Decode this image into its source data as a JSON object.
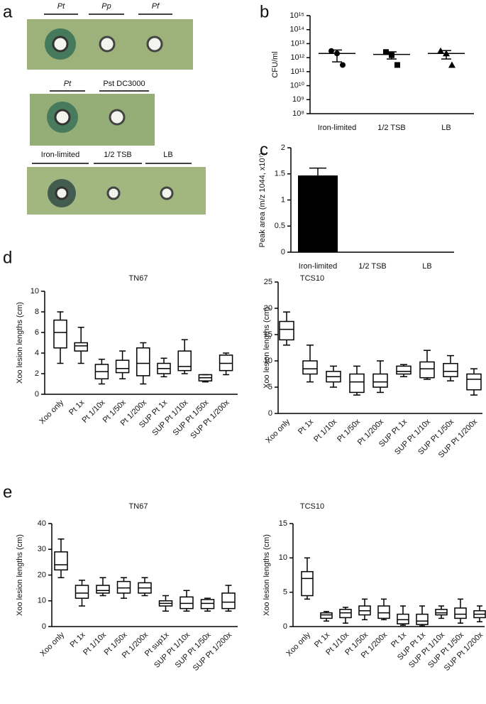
{
  "panel_labels": [
    "a",
    "b",
    "c",
    "d",
    "e"
  ],
  "panel_a": {
    "rows": [
      [
        "Pt",
        "Pp",
        "Pf"
      ],
      [
        "Pt",
        "Pst DC3000"
      ],
      [
        "Iron-limited",
        "1/2 TSB",
        "LB"
      ]
    ]
  },
  "chart_data": [
    {
      "type": "scatter",
      "y_label": "CFU/ml",
      "log_y": true,
      "categories": [
        "Iron-limited",
        "1/2 TSB",
        "LB"
      ],
      "markers": [
        "circle",
        "square",
        "triangle"
      ],
      "values": [
        [
          3000000000000.0,
          2000000000000.0,
          300000000000.0
        ],
        [
          2500000000000.0,
          1500000000000.0,
          300000000000.0
        ],
        [
          3000000000000.0,
          2000000000000.0,
          300000000000.0
        ]
      ],
      "means": [
        2000000000000.0,
        1700000000000.0,
        2000000000000.0
      ],
      "errors": [
        1500000000000.0,
        900000000000.0,
        1200000000000.0
      ],
      "ylim": [
        100000000.0,
        1000000000000000.0
      ],
      "yticks": [
        {
          "value": 100000000.0,
          "label": "10⁸"
        },
        {
          "value": 1000000000.0,
          "label": "10⁹"
        },
        {
          "value": 10000000000.0,
          "label": "10¹⁰"
        },
        {
          "value": 100000000000.0,
          "label": "10¹¹"
        },
        {
          "value": 1000000000000.0,
          "label": "10¹²"
        },
        {
          "value": 10000000000000.0,
          "label": "10¹³"
        },
        {
          "value": 100000000000000.0,
          "label": "10¹⁴"
        },
        {
          "value": 1000000000000000.0,
          "label": "10¹⁵"
        }
      ]
    },
    {
      "type": "bar",
      "y_label": "Peak area (m/z 1044, x10⁷)",
      "color": "#000000",
      "categories": [
        "Iron-limited",
        "1/2 TSB",
        "LB"
      ],
      "values": [
        1.47,
        0,
        0
      ],
      "errors": [
        0.14,
        null,
        null
      ],
      "ylim": [
        0,
        2
      ],
      "yticks": [
        0,
        0.5,
        1,
        1.5,
        2
      ]
    },
    {
      "type": "box",
      "title": "TN67",
      "y_label": "Xoo lesion lengths (cm)",
      "categories": [
        "Xoo only",
        "Pt 1x",
        "Pt 1/10x",
        "Pt 1/50x",
        "Pt 1/200x",
        "SUP Pt 1x",
        "SUP Pt 1/10x",
        "SUP Pt 1/50x",
        "SUP Pt 1/200x"
      ],
      "values": [
        [
          3,
          4.5,
          6,
          7.2,
          8
        ],
        [
          3,
          4.2,
          4.7,
          5,
          6.5
        ],
        [
          1,
          1.5,
          2.2,
          2.9,
          3.4
        ],
        [
          1.5,
          2.1,
          2.5,
          3.3,
          4.2
        ],
        [
          1,
          1.8,
          3,
          4.5,
          5
        ],
        [
          1.7,
          2,
          2.5,
          3,
          3.5
        ],
        [
          2,
          2.3,
          2.7,
          4.2,
          5.3
        ],
        [
          1.2,
          1.3,
          1.6,
          1.9,
          1.9
        ],
        [
          1.9,
          2.3,
          3,
          3.8,
          4
        ]
      ],
      "ylim": [
        0,
        10
      ],
      "yticks": [
        0,
        2,
        4,
        6,
        8,
        10
      ]
    },
    {
      "type": "box",
      "title": "TCS10",
      "y_label": "Xoo lesion lengths (cm)",
      "categories": [
        "Xoo only",
        "Pt 1x",
        "Pt 1/10x",
        "Pt 1/50x",
        "Pt 1/200x",
        "SUP Pt 1x",
        "SUP Pt 1/10x",
        "SUP Pt 1/50x",
        "SUP Pt 1/200x"
      ],
      "values": [
        [
          13,
          14,
          16,
          17.5,
          19.3
        ],
        [
          6,
          7.5,
          8.5,
          10,
          13
        ],
        [
          5,
          6,
          7,
          8,
          9
        ],
        [
          3.5,
          4,
          6,
          7.5,
          9
        ],
        [
          4,
          5,
          6,
          7.5,
          10
        ],
        [
          7,
          7.5,
          8,
          9,
          9.3
        ],
        [
          6.5,
          6.8,
          8.5,
          9.8,
          12
        ],
        [
          6.2,
          7,
          8,
          9.5,
          11
        ],
        [
          3.5,
          4.5,
          6.5,
          7.5,
          8.5
        ]
      ],
      "ylim": [
        0,
        25
      ],
      "yticks": [
        0,
        5,
        10,
        15,
        20,
        25
      ]
    },
    {
      "type": "box",
      "title": "TN67",
      "y_label": "Xoo lesion lengths (cm)",
      "categories": [
        "Xoo only",
        "Pt 1x",
        "Pt 1/10x",
        "Pt 1/50x",
        "Pt 1/200x",
        "Pt sup1x",
        "SUP Pt 1/10x",
        "SUP Pt 1/50x",
        "SUP Pt 1/200x"
      ],
      "values": [
        [
          19,
          22,
          24,
          29,
          34
        ],
        [
          8,
          11,
          13,
          16,
          18
        ],
        [
          12,
          13,
          14,
          16,
          19
        ],
        [
          11,
          13,
          15,
          17.5,
          19
        ],
        [
          12,
          13,
          15,
          17,
          19
        ],
        [
          6,
          8,
          9,
          10,
          12
        ],
        [
          6,
          7,
          9,
          11.5,
          14
        ],
        [
          6,
          7,
          9,
          10.5,
          11
        ],
        [
          6,
          7,
          9.5,
          13,
          16
        ]
      ],
      "ylim": [
        0,
        40
      ],
      "yticks": [
        0,
        10,
        20,
        30,
        40
      ]
    },
    {
      "type": "box",
      "title": "TCS10",
      "y_label": "Xoo lesion lengths (cm)",
      "categories": [
        "Xoo only",
        "Pt 1x",
        "Pt 1/10x",
        "Pt 1/50x",
        "Pt 1/200x",
        "Pt 1x",
        "SUP Pt 1x",
        "SUP Pt 1/10x",
        "SUP Pt 1/50x",
        "SUP Pt 1/200x"
      ],
      "values": [
        [
          4,
          4.5,
          7,
          8,
          10
        ],
        [
          0.8,
          1.2,
          1.7,
          2,
          2.2
        ],
        [
          0.5,
          1.3,
          2,
          2.5,
          2.8
        ],
        [
          1,
          1.7,
          2.3,
          3,
          4
        ],
        [
          1,
          1.2,
          2,
          3,
          4
        ],
        [
          0.2,
          0.4,
          1,
          1.8,
          3
        ],
        [
          0.1,
          0.3,
          0.8,
          1.8,
          3
        ],
        [
          1.2,
          1.7,
          2,
          2.5,
          3
        ],
        [
          0.5,
          1.2,
          1.8,
          2.7,
          4
        ],
        [
          0.7,
          1.3,
          1.8,
          2.3,
          3
        ]
      ],
      "ylim": [
        0,
        15
      ],
      "yticks": [
        0,
        5,
        10,
        15
      ]
    }
  ]
}
